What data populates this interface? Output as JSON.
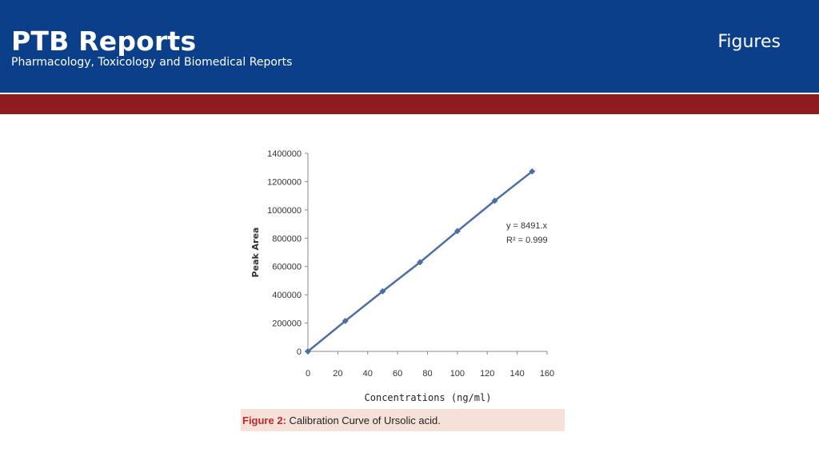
{
  "header": {
    "title": "PTB Reports",
    "subtitle": "Pharmacology, Toxicology and Biomedical Reports",
    "section": "Figures"
  },
  "caption": {
    "label": "Figure 2:",
    "text": "Calibration Curve of Ursolic acid."
  },
  "colors": {
    "header_bg": "#0b3f8a",
    "band": "#8e1b1d",
    "series": "#4a6fa5",
    "caption_bg": "#f5e1d8",
    "caption_label": "#c0272d"
  },
  "chart_data": {
    "type": "line",
    "title": "",
    "xlabel": "Concentrations (ng/ml)",
    "ylabel": "Peak Area",
    "xlim": [
      0,
      160
    ],
    "ylim": [
      0,
      1400000
    ],
    "xticks": [
      0,
      20,
      40,
      60,
      80,
      100,
      120,
      140,
      160
    ],
    "yticks": [
      0,
      200000,
      400000,
      600000,
      800000,
      1000000,
      1200000,
      1400000
    ],
    "grid": false,
    "legend": "none",
    "marker": "diamond",
    "series": [
      {
        "x": [
          0,
          25,
          50,
          75,
          100,
          125,
          150
        ],
        "y": [
          0,
          215000,
          425000,
          630000,
          850000,
          1065000,
          1272000
        ]
      }
    ],
    "annotations": [
      {
        "text": "y = 8491.x"
      },
      {
        "text": "R² = 0.999"
      }
    ]
  }
}
